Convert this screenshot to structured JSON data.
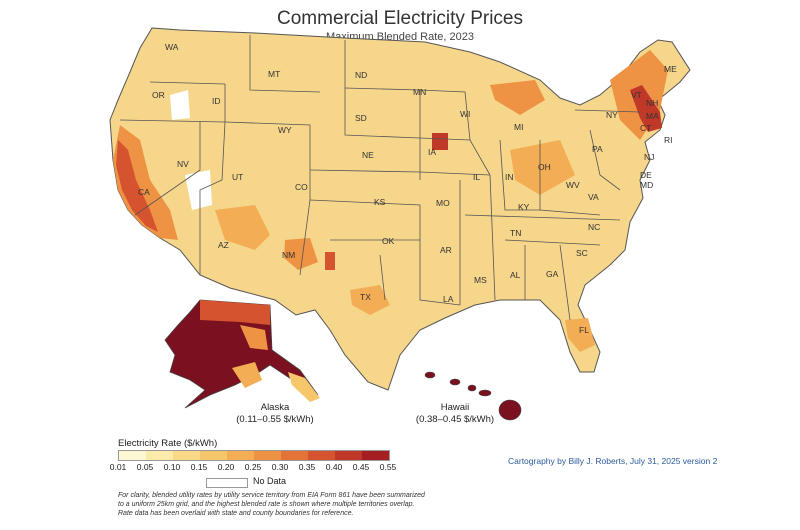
{
  "title": "Commercial Electricity Prices",
  "subtitle": "Maximum Blended Rate, 2023",
  "state_labels": [
    "WA",
    "OR",
    "ID",
    "MT",
    "ND",
    "MN",
    "WY",
    "SD",
    "NE",
    "IA",
    "WI",
    "MI",
    "NV",
    "UT",
    "CO",
    "CA",
    "KS",
    "MO",
    "IL",
    "IN",
    "OH",
    "PA",
    "NY",
    "NJ",
    "DE",
    "MD",
    "VA",
    "WV",
    "KY",
    "TN",
    "NC",
    "SC",
    "GA",
    "AL",
    "MS",
    "AR",
    "OK",
    "TX",
    "LA",
    "NM",
    "AZ",
    "FL",
    "ME",
    "VT",
    "NH",
    "MA",
    "CT",
    "RI"
  ],
  "alaska": {
    "name": "Alaska",
    "range": "(0.11–0.55 $/kWh)"
  },
  "hawaii": {
    "name": "Hawaii",
    "range": "(0.38–0.45 $/kWh)"
  },
  "legend": {
    "title": "Electricity Rate ($/kWh)",
    "ticks": [
      "0.01",
      "0.05",
      "0.10",
      "0.15",
      "0.20",
      "0.25",
      "0.30",
      "0.35",
      "0.40",
      "0.45",
      "0.55"
    ],
    "colors": [
      "#fdf7d3",
      "#fbeaa9",
      "#f9d985",
      "#f6c66a",
      "#f3ad54",
      "#ee9244",
      "#e47338",
      "#d5532e",
      "#c03827",
      "#a51f22"
    ],
    "no_data_label": "No Data"
  },
  "credit": "Cartography by Billy J. Roberts,   July 31, 2025 version 2",
  "note_lines": [
    "For clarity, blended utility rates by utility service territory from EIA Form 861 have been summarized",
    "to a uniform 25km grid, and the highest blended rate is shown where multiple territories overlap.",
    "Rate data has been overlaid with state and county boundaries for reference."
  ],
  "colors": {
    "land": "#f6d68a",
    "state_line": "#555555",
    "dark": "#7a1020"
  }
}
